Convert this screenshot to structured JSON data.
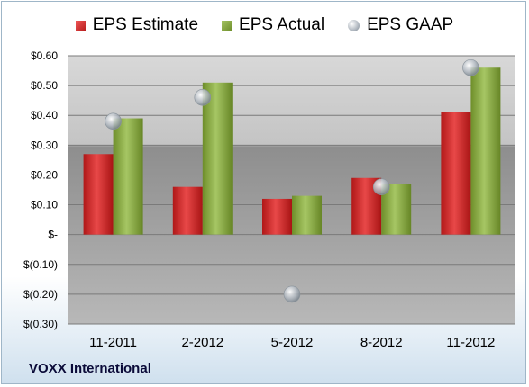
{
  "legend": {
    "estimate": "EPS Estimate",
    "actual": "EPS Actual",
    "gaap": "EPS GAAP"
  },
  "company": "VOXX International",
  "colors": {
    "estimate": "#d32f2f",
    "actual": "#88aa44",
    "gaap": "#b8c0c8"
  },
  "chart_data": {
    "type": "bar",
    "categories": [
      "11-2011",
      "2-2012",
      "5-2012",
      "8-2012",
      "11-2012"
    ],
    "series": [
      {
        "name": "EPS Estimate",
        "values": [
          0.27,
          0.16,
          0.12,
          0.19,
          0.41
        ]
      },
      {
        "name": "EPS Actual",
        "values": [
          0.39,
          0.51,
          0.13,
          0.17,
          0.56
        ]
      },
      {
        "name": "EPS GAAP",
        "type": "scatter",
        "values": [
          0.38,
          0.46,
          -0.2,
          0.16,
          0.56
        ]
      }
    ],
    "ylim": [
      -0.3,
      0.6
    ],
    "yticks": [
      0.6,
      0.5,
      0.4,
      0.3,
      0.2,
      0.1,
      0.0,
      -0.1,
      -0.2,
      -0.3
    ],
    "ytick_labels": [
      "$0.60",
      "$0.50",
      "$0.40",
      "$0.30",
      "$0.20",
      "$0.10",
      "$-",
      "$(0.10)",
      "$(0.20)",
      "$(0.30)"
    ],
    "grid": true,
    "legend_position": "top"
  }
}
